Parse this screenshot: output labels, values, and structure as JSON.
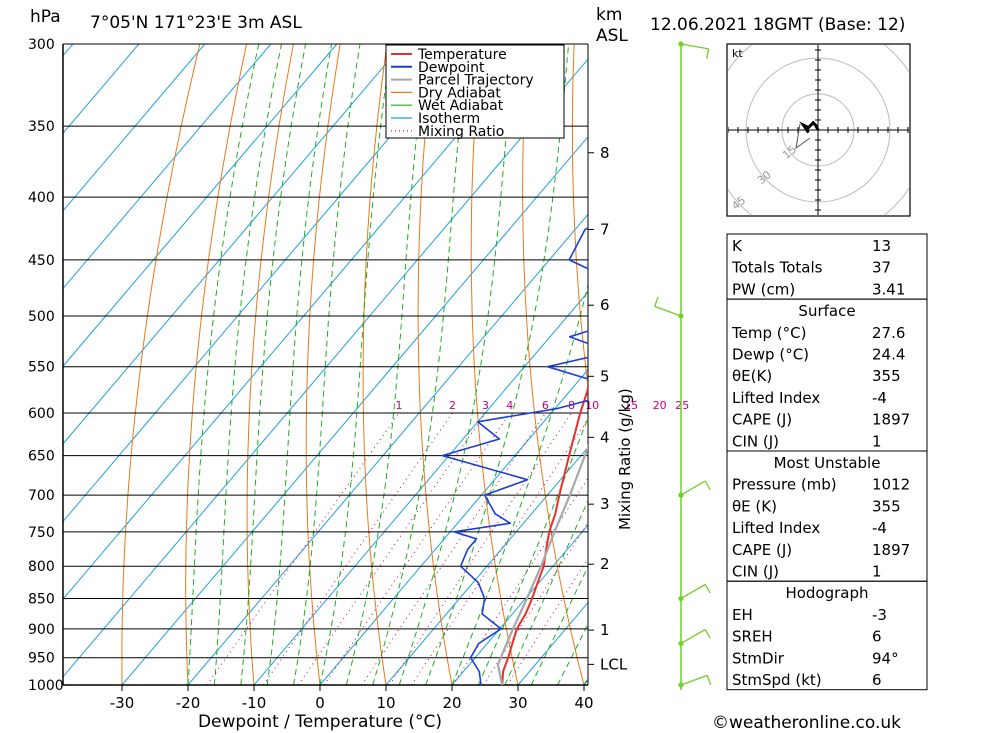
{
  "header": {
    "unit_left": "hPa",
    "location": "7°05'N 171°23'E 3m ASL",
    "unit_km": "km",
    "unit_asl": "ASL",
    "datetime": "12.06.2021 18GMT (Base: 12)"
  },
  "footer": {
    "xlabel": "Dewpoint / Temperature (°C)",
    "copyright": "©weatheronline.co.uk"
  },
  "colors": {
    "temperature": "#e8302a",
    "dewpoint": "#1a3fd6",
    "parcel": "#a8a8a8",
    "dry_adiabat": "#e87a1c",
    "wet_adiabat": "#1fae1f",
    "isotherm": "#1fa0e0",
    "mixing_ratio": "#c0007a",
    "wind": "#6fd02a"
  },
  "chart_data": {
    "type": "line",
    "title": "",
    "xlabel": "Dewpoint / Temperature (°C)",
    "ylabel": "hPa",
    "right_label": "Mixing Ratio (g/kg)",
    "x_ticks": [
      -30,
      -20,
      -10,
      0,
      10,
      20,
      30,
      40
    ],
    "pressure_levels": [
      300,
      350,
      400,
      450,
      500,
      550,
      600,
      650,
      700,
      750,
      800,
      850,
      900,
      950,
      1000
    ],
    "km_ticks": [
      {
        "label": "8",
        "p": 368
      },
      {
        "label": "7",
        "p": 425
      },
      {
        "label": "6",
        "p": 490
      },
      {
        "label": "5",
        "p": 560
      },
      {
        "label": "4",
        "p": 628
      },
      {
        "label": "3",
        "p": 712
      },
      {
        "label": "2",
        "p": 797
      },
      {
        "label": "1",
        "p": 902
      },
      {
        "label": "LCL",
        "p": 962
      }
    ],
    "mixing_ratio_labels": [
      "1",
      "2",
      "3",
      "4",
      "6",
      "8",
      "10",
      "15",
      "20",
      "25"
    ],
    "mixing_ratio_values": [
      1,
      2,
      3,
      4,
      6,
      8,
      10,
      15,
      20,
      25
    ],
    "legend": [
      "Temperature",
      "Dewpoint",
      "Parcel Trajectory",
      "Dry Adiabat",
      "Wet Adiabat",
      "Isotherm",
      "Mixing Ratio"
    ],
    "series": [
      {
        "name": "Temperature",
        "points": [
          [
            1000,
            27.6
          ],
          [
            975,
            26.0
          ],
          [
            950,
            25.0
          ],
          [
            925,
            23.8
          ],
          [
            900,
            22.6
          ],
          [
            875,
            22.0
          ],
          [
            850,
            21.0
          ],
          [
            825,
            19.8
          ],
          [
            800,
            18.6
          ],
          [
            775,
            16.8
          ],
          [
            750,
            15.0
          ],
          [
            725,
            13.6
          ],
          [
            700,
            11.8
          ],
          [
            650,
            8.2
          ],
          [
            600,
            4.4
          ],
          [
            575,
            2.6
          ],
          [
            550,
            0.0
          ],
          [
            500,
            -4.8
          ],
          [
            450,
            -10.8
          ],
          [
            400,
            -17.0
          ],
          [
            350,
            -26.0
          ],
          [
            300,
            -35.5
          ]
        ]
      },
      {
        "name": "Dewpoint",
        "points": [
          [
            1000,
            24.4
          ],
          [
            975,
            22.4
          ],
          [
            950,
            19.3
          ],
          [
            925,
            18.7
          ],
          [
            900,
            20.2
          ],
          [
            875,
            15.4
          ],
          [
            850,
            13.8
          ],
          [
            825,
            10.8
          ],
          [
            800,
            6.0
          ],
          [
            775,
            4.9
          ],
          [
            760,
            4.9
          ],
          [
            750,
            0.6
          ],
          [
            738,
            8.0
          ],
          [
            725,
            4.5
          ],
          [
            700,
            0.5
          ],
          [
            680,
            5.0
          ],
          [
            650,
            -11.0
          ],
          [
            630,
            -4.5
          ],
          [
            610,
            -10.0
          ],
          [
            595,
            0.3
          ],
          [
            575,
            8.4
          ],
          [
            550,
            -6.5
          ],
          [
            535,
            1.3
          ],
          [
            520,
            -7.0
          ],
          [
            500,
            0.4
          ],
          [
            475,
            -4.0
          ],
          [
            450,
            -17.0
          ],
          [
            425,
            -18.5
          ],
          [
            395,
            -13.2
          ],
          [
            380,
            -18.4
          ],
          [
            360,
            -22.2
          ],
          [
            300,
            -31.5
          ]
        ]
      },
      {
        "name": "Parcel Trajectory",
        "points": [
          [
            1000,
            27.6
          ],
          [
            962,
            24.3
          ],
          [
            900,
            22.0
          ],
          [
            850,
            20.2
          ],
          [
            800,
            18.2
          ],
          [
            750,
            15.8
          ],
          [
            700,
            13.4
          ],
          [
            650,
            10.6
          ],
          [
            600,
            7.5
          ],
          [
            550,
            4.0
          ],
          [
            500,
            0.0
          ],
          [
            450,
            -4.6
          ],
          [
            400,
            -10.2
          ],
          [
            370,
            -14.0
          ]
        ]
      }
    ],
    "winds": [
      {
        "p": 300,
        "dir_deg": 280,
        "speed_kt": 10
      },
      {
        "p": 500,
        "dir_deg": 110,
        "speed_kt": 10
      },
      {
        "p": 700,
        "dir_deg": 240,
        "speed_kt": 10
      },
      {
        "p": 850,
        "dir_deg": 240,
        "speed_kt": 10
      },
      {
        "p": 925,
        "dir_deg": 240,
        "speed_kt": 10
      },
      {
        "p": 1000,
        "dir_deg": 250,
        "speed_kt": 10
      }
    ],
    "hodograph": {
      "unit": "kt",
      "ring_labels": [
        "15",
        "30",
        "45"
      ],
      "trace_uv": [
        [
          0,
          0
        ],
        [
          -1,
          2
        ],
        [
          -2,
          3
        ],
        [
          -4,
          1
        ],
        [
          -6,
          2
        ],
        [
          -4,
          -1
        ]
      ]
    }
  },
  "indices": {
    "top": [
      {
        "label": "K",
        "value": "13"
      },
      {
        "label": "Totals Totals",
        "value": "37"
      },
      {
        "label": "PW (cm)",
        "value": "3.41"
      }
    ],
    "surface": {
      "title": "Surface",
      "rows": [
        {
          "label": "Temp (°C)",
          "value": "27.6"
        },
        {
          "label": "Dewp (°C)",
          "value": "24.4"
        },
        {
          "label": "θE(K)",
          "value": "355"
        },
        {
          "label": "Lifted Index",
          "value": "-4"
        },
        {
          "label": "CAPE (J)",
          "value": "1897"
        },
        {
          "label": "CIN (J)",
          "value": "1"
        }
      ]
    },
    "most_unstable": {
      "title": "Most Unstable",
      "rows": [
        {
          "label": "Pressure (mb)",
          "value": "1012"
        },
        {
          "label": "θE (K)",
          "value": "355"
        },
        {
          "label": "Lifted Index",
          "value": "-4"
        },
        {
          "label": "CAPE (J)",
          "value": "1897"
        },
        {
          "label": "CIN (J)",
          "value": "1"
        }
      ]
    },
    "hodograph": {
      "title": "Hodograph",
      "rows": [
        {
          "label": "EH",
          "value": "-3"
        },
        {
          "label": "SREH",
          "value": "6"
        },
        {
          "label": "StmDir",
          "value": "94°"
        },
        {
          "label": "StmSpd (kt)",
          "value": "6"
        }
      ]
    }
  }
}
